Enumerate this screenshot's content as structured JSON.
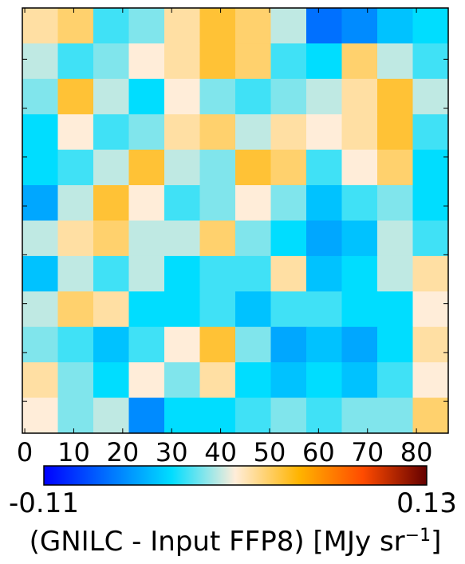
{
  "chart_data": {
    "type": "heatmap",
    "xlim": [
      -0.5,
      86.5
    ],
    "xticks": [
      0,
      10,
      20,
      30,
      40,
      50,
      60,
      70,
      80
    ],
    "ylim": [
      -0.5,
      86.5
    ],
    "yticks": [
      10,
      20,
      30,
      40,
      50,
      60,
      70,
      80
    ],
    "y_inverted": true,
    "ytick_labels": false,
    "colormap": [
      "#0000ff",
      "#0070ff",
      "#00ddff",
      "#ffedd9",
      "#ffb400",
      "#ff4b00",
      "#640000"
    ],
    "z": [
      [
        0.02,
        0.03,
        -0.02,
        -0.01,
        0.02,
        0.04,
        0.03,
        0.0,
        -0.07,
        -0.06,
        -0.04,
        -0.03
      ],
      [
        0.0,
        -0.02,
        -0.01,
        0.01,
        0.02,
        0.04,
        0.03,
        -0.02,
        -0.03,
        0.03,
        0.0,
        -0.02
      ],
      [
        -0.01,
        0.04,
        0.0,
        -0.03,
        0.01,
        -0.01,
        -0.02,
        -0.01,
        0.0,
        0.02,
        0.04,
        0.0
      ],
      [
        -0.03,
        0.01,
        -0.02,
        -0.01,
        0.02,
        0.03,
        0.0,
        0.02,
        0.01,
        0.02,
        0.04,
        -0.02
      ],
      [
        -0.03,
        -0.02,
        0.0,
        0.04,
        0.0,
        -0.01,
        0.04,
        0.03,
        -0.02,
        0.01,
        0.03,
        -0.03
      ],
      [
        -0.05,
        0.0,
        0.04,
        0.01,
        -0.02,
        -0.01,
        0.01,
        -0.01,
        -0.04,
        -0.02,
        -0.01,
        -0.03
      ],
      [
        0.0,
        0.02,
        0.03,
        0.0,
        0.0,
        0.03,
        -0.01,
        -0.03,
        -0.05,
        -0.04,
        0.0,
        -0.02
      ],
      [
        -0.04,
        0.0,
        -0.02,
        0.0,
        -0.03,
        -0.02,
        -0.02,
        0.02,
        -0.04,
        -0.03,
        0.0,
        0.02
      ],
      [
        0.0,
        0.03,
        0.02,
        -0.03,
        -0.03,
        -0.02,
        -0.04,
        -0.02,
        -0.02,
        -0.03,
        -0.03,
        0.01
      ],
      [
        -0.01,
        -0.02,
        -0.04,
        -0.02,
        0.01,
        0.04,
        -0.01,
        -0.05,
        -0.04,
        -0.05,
        -0.03,
        0.02
      ],
      [
        0.02,
        -0.01,
        -0.03,
        0.01,
        -0.01,
        0.02,
        -0.03,
        -0.04,
        -0.03,
        -0.04,
        -0.02,
        0.01
      ],
      [
        0.01,
        -0.01,
        0.0,
        -0.06,
        -0.03,
        -0.03,
        -0.02,
        -0.01,
        -0.02,
        -0.01,
        -0.01,
        0.03
      ]
    ],
    "colorbar": {
      "lim": [
        -0.11,
        0.13
      ],
      "ticks": [
        -0.11,
        0.13
      ],
      "label": [
        "(GNILC - Input FFP8) [MJy sr",
        "−1",
        "]"
      ]
    }
  }
}
